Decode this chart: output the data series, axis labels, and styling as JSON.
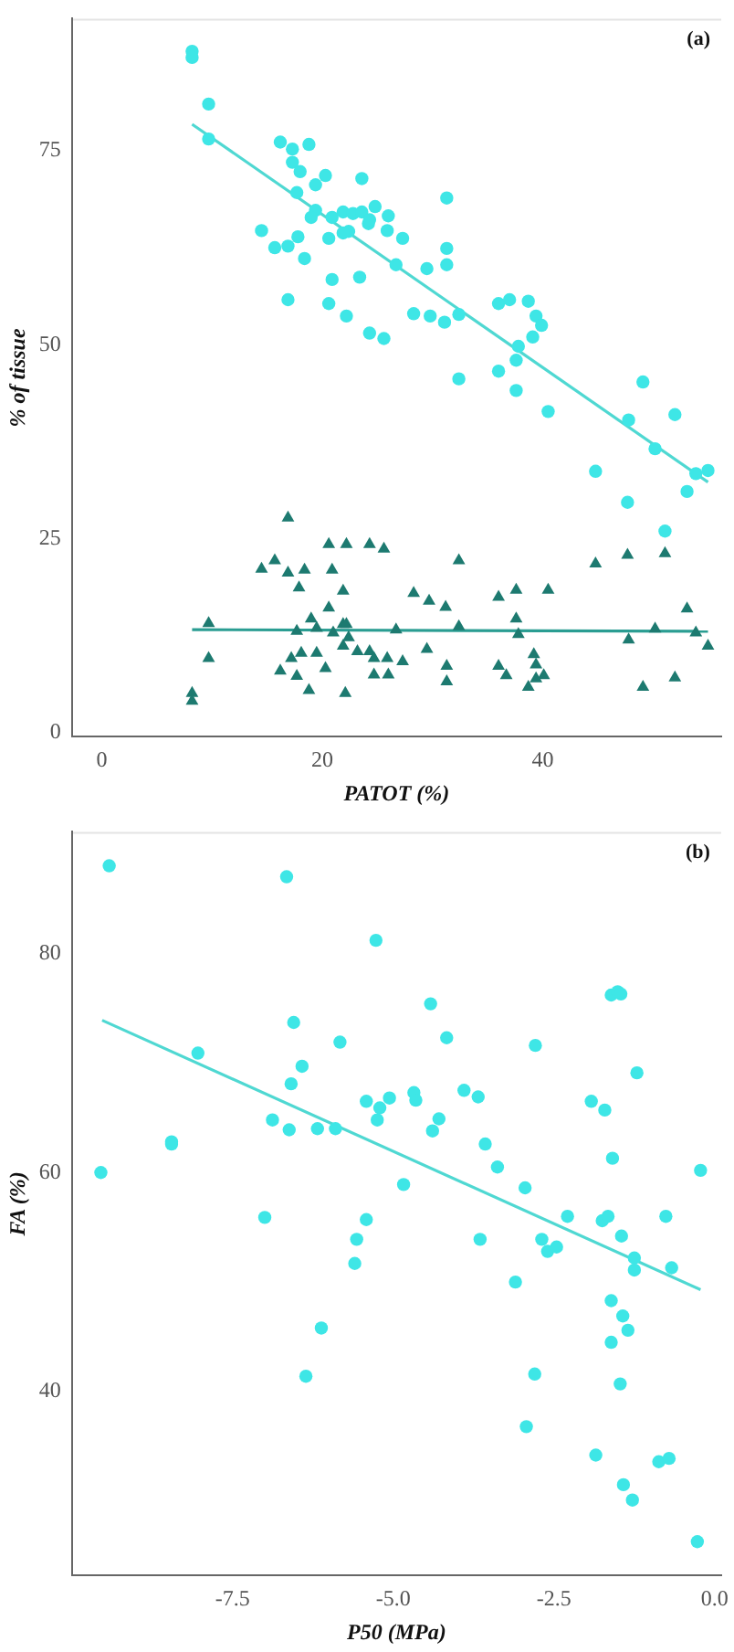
{
  "chart_data": [
    {
      "type": "scatter",
      "xlabel": "PATOT (%)",
      "ylabel": "% of tissue",
      "annotations": [
        "(a)"
      ],
      "xlim": [
        -2.7,
        56.2
      ],
      "ylim": [
        -0.5,
        92
      ],
      "xticks": [
        0,
        20,
        40
      ],
      "yticks": [
        0,
        25,
        50,
        75
      ],
      "grid": false,
      "legend": false,
      "series": [
        {
          "type": "scatter",
          "marker": "circle",
          "color": "#3ee6e6",
          "x": [
            8.2,
            8.2,
            9.7,
            9.7,
            16.2,
            17.3,
            18.8,
            17.3,
            18,
            19.4,
            20.3,
            17.7,
            19.4,
            19,
            14.5,
            15.7,
            16.9,
            17.8,
            18.4,
            20.9,
            21.9,
            22.4,
            20.6,
            21.9,
            23.6,
            22.8,
            23.6,
            24.2,
            24.8,
            24.3,
            26,
            25.9,
            20.9,
            23.4,
            20.6,
            22.2,
            24.3,
            25.6,
            16.9,
            26.7,
            27.3,
            29.5,
            31.3,
            31.3,
            31.3,
            28.3,
            29.8,
            31.1,
            32.4,
            32.4,
            36,
            37,
            38.7,
            39.4,
            39.9,
            39.1,
            37.8,
            37.6,
            36,
            37.6,
            40.5,
            44.8,
            47.7,
            47.8,
            49.1,
            50.2,
            52,
            51.1,
            53.1,
            53.9,
            55
          ],
          "values": [
            87.8,
            87,
            81,
            76.5,
            76.1,
            75.2,
            75.8,
            73.5,
            72.3,
            70.6,
            71.8,
            69.6,
            67.3,
            66.4,
            64.7,
            62.5,
            62.7,
            63.9,
            61.1,
            66.4,
            67.1,
            64.6,
            63.7,
            64.4,
            71.4,
            66.9,
            67.1,
            65.6,
            67.8,
            66.1,
            66.6,
            64.7,
            58.4,
            58.7,
            55.3,
            53.7,
            51.5,
            50.8,
            55.8,
            60.3,
            63.7,
            59.8,
            68.9,
            62.4,
            60.3,
            54,
            53.7,
            52.9,
            53.9,
            45.6,
            55.3,
            55.8,
            55.6,
            53.7,
            52.5,
            51,
            49.8,
            48,
            46.6,
            44.1,
            41.4,
            33.7,
            29.7,
            40.3,
            45.2,
            36.6,
            41,
            26,
            31.1,
            33.4,
            33.8
          ]
        },
        {
          "type": "scatter",
          "marker": "triangle",
          "color": "#1d7a70",
          "x": [
            8.2,
            8.2,
            9.7,
            9.7,
            16.9,
            14.5,
            15.7,
            16.9,
            18.4,
            17.9,
            20.6,
            22.2,
            24.3,
            25.6,
            20.9,
            21.9,
            20.6,
            19,
            19.5,
            17.7,
            21,
            21.9,
            22.2,
            22.4,
            21.9,
            23.2,
            24.3,
            24.7,
            25.9,
            19.5,
            18.1,
            17.2,
            16.2,
            17.7,
            18.8,
            20.3,
            22.1,
            24.7,
            26,
            26.7,
            28.3,
            29.7,
            31.2,
            32.4,
            32.4,
            29.5,
            27.3,
            31.3,
            31.3,
            36,
            37.6,
            40.5,
            37.6,
            37.8,
            36,
            36.7,
            39.2,
            39.4,
            40.1,
            39.4,
            38.7,
            44.8,
            47.7,
            51.1,
            53.1,
            50.2,
            47.8,
            53.9,
            55,
            49.1,
            52
          ],
          "values": [
            5.1,
            4.1,
            14.1,
            9.6,
            27.7,
            21.1,
            22.2,
            20.6,
            21,
            18.7,
            24.3,
            24.3,
            24.3,
            23.7,
            21,
            18.3,
            16.1,
            14.7,
            13.5,
            13.1,
            12.9,
            14,
            14,
            12.3,
            11.2,
            10.5,
            10.5,
            9.6,
            9.6,
            10.3,
            10.3,
            9.6,
            8,
            7.3,
            5.5,
            8.3,
            5.1,
            7.5,
            7.5,
            13.3,
            18,
            17,
            16.2,
            22.2,
            13.7,
            10.8,
            9.2,
            8.6,
            6.6,
            17.5,
            18.4,
            18.4,
            14.7,
            12.7,
            8.6,
            7.4,
            10.1,
            8.8,
            7.4,
            7,
            5.9,
            21.8,
            22.9,
            23.1,
            16,
            13.4,
            12,
            12.9,
            11.2,
            5.9,
            7.1
          ]
        },
        {
          "type": "line",
          "marker": "none",
          "color": "#4fd8d2",
          "x": [
            8.2,
            55
          ],
          "values": [
            78.4,
            32.3
          ]
        },
        {
          "type": "line",
          "marker": "none",
          "color": "#2a9d92",
          "x": [
            8.2,
            55
          ],
          "values": [
            13.3,
            13.1
          ]
        }
      ]
    },
    {
      "type": "scatter",
      "xlabel": "P50 (MPa)",
      "ylabel": "FA (%)",
      "annotations": [
        "(b)"
      ],
      "xlim": [
        -10,
        0.1
      ],
      "ylim": [
        23.2,
        91.1
      ],
      "xticks": [
        {
          "value": -7.5,
          "label": "-7.5"
        },
        {
          "value": -5,
          "label": "-5.0"
        },
        {
          "value": -2.5,
          "label": "-2.5"
        },
        {
          "value": 0,
          "label": "0.0"
        }
      ],
      "yticks": [
        40,
        60,
        80
      ],
      "grid": false,
      "legend": false,
      "series": [
        {
          "type": "scatter",
          "marker": "circle",
          "color": "#3ee6e6",
          "x": [
            -9.42,
            -9.55,
            -8.04,
            -8.45,
            -8.45,
            -6.66,
            -6.55,
            -6.42,
            -6.59,
            -6.88,
            -6.62,
            -6.18,
            -5.9,
            -5.83,
            -7,
            -6.12,
            -6.36,
            -5.42,
            -5.27,
            -5.21,
            -5.25,
            -5.06,
            -5.42,
            -5.57,
            -5.6,
            -4.42,
            -4.17,
            -4.68,
            -4.65,
            -4.84,
            -4.29,
            -4.39,
            -3.9,
            -3.68,
            -3.57,
            -3.38,
            -3.65,
            -2.79,
            -2.95,
            -3.1,
            -2.8,
            -2.93,
            -2.69,
            -2.6,
            -2.46,
            -2.29,
            -1.92,
            -1.71,
            -1.59,
            -1.61,
            -1.51,
            -1.46,
            -1.21,
            -1.75,
            -1.66,
            -1.45,
            -1.25,
            -1.25,
            -1.61,
            -1.43,
            -1.35,
            -1.61,
            -1.47,
            -1.85,
            -1.42,
            -1.28,
            -0.87,
            -0.71,
            -0.76,
            -0.67,
            -0.22,
            -0.27
          ],
          "values": [
            88,
            60,
            70.9,
            62.8,
            62.6,
            87,
            73.7,
            69.7,
            68.1,
            64.8,
            63.9,
            64,
            64,
            71.9,
            55.9,
            45.8,
            41.4,
            66.5,
            81.2,
            65.9,
            64.8,
            66.8,
            55.7,
            53.9,
            51.7,
            75.4,
            72.3,
            67.3,
            66.6,
            58.9,
            64.9,
            63.8,
            67.5,
            66.9,
            62.6,
            60.5,
            53.9,
            71.6,
            58.6,
            50,
            41.6,
            36.8,
            53.9,
            52.8,
            53.2,
            56,
            66.5,
            65.7,
            61.3,
            76.2,
            76.5,
            76.3,
            69.1,
            55.6,
            56,
            54.2,
            52.2,
            51.1,
            48.3,
            46.9,
            45.6,
            44.5,
            40.7,
            34.2,
            31.5,
            30.1,
            33.6,
            33.9,
            56,
            51.3,
            60.2,
            26.3
          ]
        },
        {
          "type": "line",
          "marker": "none",
          "color": "#4fd8d2",
          "x": [
            -9.53,
            -0.22
          ],
          "values": [
            73.9,
            49.3
          ]
        }
      ]
    }
  ]
}
